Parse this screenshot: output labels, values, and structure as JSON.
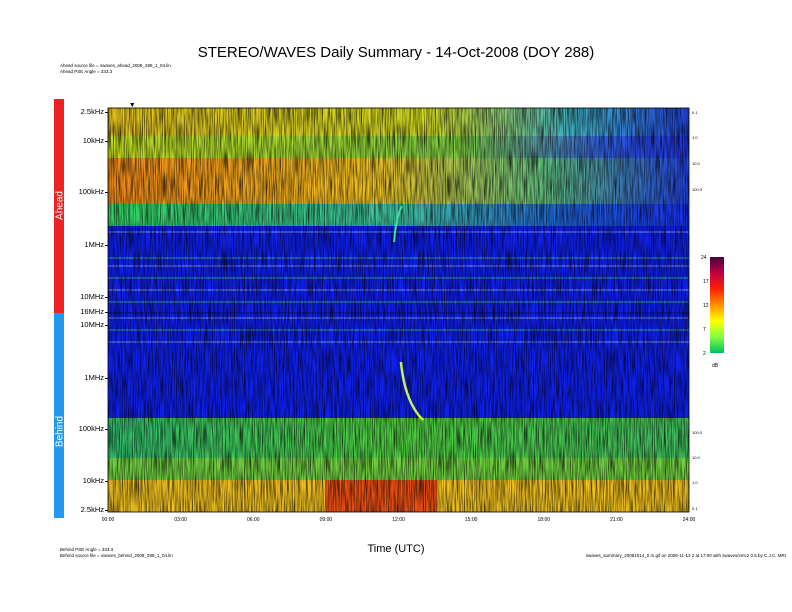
{
  "header": {
    "title": "STEREO/WAVES Daily Summary - 14-Oct-2008 (DOY 288)",
    "ahead_source": "Ahead source file = swaves_ahead_2008_288_1_04.lin",
    "ahead_pse": "Ahead PSE Angle = 333.3",
    "behind_pse": "Behind PSE Angle = 333.3",
    "behind_source": "Behind source file = swaves_behind_2008_288_1_04.lin",
    "footer_right": "swaves_summary_20081014_0 m.gif on 2008-11-13 2 at 17:00 with swaves/xmc2 0.5 by C.J.C. MRI"
  },
  "panels": {
    "ahead_label": "Ahead",
    "behind_label": "Behind",
    "colors": {
      "ahead": "#ee2222",
      "behind": "#2299ee"
    }
  },
  "chart_data": {
    "type": "heatmap",
    "xlabel": "Time (UTC)",
    "xlim": [
      0,
      24
    ],
    "x_ticks": [
      "00:00",
      "03:00",
      "06:00",
      "09:00",
      "12:00",
      "15:00",
      "18:00",
      "21:00",
      "24:00"
    ],
    "ahead_freq_ticks": [
      "2.5kHz",
      "10kHz",
      "100kHz",
      "1MHz",
      "10MHz",
      "16MHz"
    ],
    "behind_freq_ticks": [
      "10MHz",
      "1MHz",
      "100kHz",
      "10kHz",
      "2.5kHz"
    ],
    "ahead_right_ticks": [
      "0.1",
      "1.0",
      "10.0",
      "100.0"
    ],
    "behind_right_ticks": [
      "100.0",
      "10.0",
      "1.0",
      "0.1"
    ],
    "colorbar": {
      "unit": "dB",
      "ticks": [
        "24",
        "17",
        "12",
        "7",
        "2"
      ],
      "range": [
        2,
        24
      ]
    },
    "events": [
      {
        "panel": "ahead",
        "time": 11.9,
        "type": "radio burst"
      },
      {
        "panel": "behind",
        "time": 12.1,
        "type": "radio burst"
      }
    ],
    "start_marker_time": 1.0
  }
}
